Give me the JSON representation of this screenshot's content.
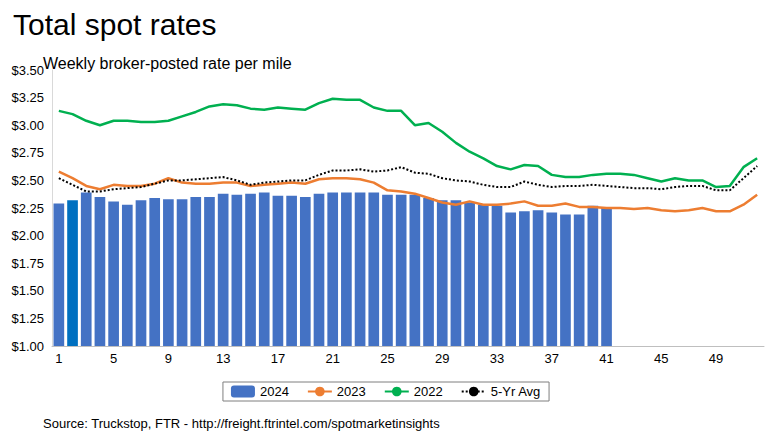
{
  "chart_data": {
    "type": "bar",
    "title": "Total spot rates",
    "subtitle": "Weekly broker-posted rate per mile",
    "annotations": [
      "Source: Truckstop, FTR - http://freight.ftrintel.com/spotmarketinsights"
    ],
    "categories": [
      1,
      null,
      null,
      null,
      5,
      null,
      null,
      null,
      9,
      null,
      null,
      null,
      13,
      null,
      null,
      null,
      17,
      null,
      null,
      null,
      21,
      null,
      null,
      null,
      25,
      null,
      null,
      null,
      29,
      null,
      null,
      null,
      33,
      null,
      null,
      null,
      37,
      null,
      null,
      null,
      41,
      null,
      null,
      null,
      45,
      null,
      null,
      null,
      49,
      null,
      null,
      null
    ],
    "ylim": [
      1.0,
      3.5
    ],
    "yticks": [
      {
        "value": 1.0,
        "label": "$1.00"
      },
      {
        "value": 1.25,
        "label": "$1.25"
      },
      {
        "value": 1.5,
        "label": "$1.50"
      },
      {
        "value": 1.75,
        "label": "$1.75"
      },
      {
        "value": 2.0,
        "label": "$2.00"
      },
      {
        "value": 2.25,
        "label": "$2.25"
      },
      {
        "value": 2.5,
        "label": "$2.50"
      },
      {
        "value": 2.75,
        "label": "$2.75"
      },
      {
        "value": 3.0,
        "label": "$3.00"
      },
      {
        "value": 3.25,
        "label": "$3.25"
      },
      {
        "value": 3.5,
        "label": "$3.50"
      }
    ],
    "grid": false,
    "legend": "bottom",
    "series": [
      {
        "name": "2024",
        "type": "bar",
        "color": "#4472c4",
        "colors": [
          "#4472c4",
          "#0070c0",
          "#4472c4",
          "#4472c4",
          "#4472c4",
          "#4472c4",
          "#4472c4",
          "#4472c4",
          "#4472c4",
          "#4472c4",
          "#4472c4",
          "#4472c4",
          "#4472c4",
          "#4472c4",
          "#4472c4",
          "#4472c4",
          "#4472c4",
          "#4472c4",
          "#4472c4",
          "#4472c4",
          "#4472c4",
          "#4472c4",
          "#4472c4",
          "#4472c4",
          "#4472c4",
          "#4472c4",
          "#4472c4",
          "#4472c4",
          "#4472c4",
          "#4472c4",
          "#4472c4",
          "#4472c4",
          "#4472c4",
          "#4472c4",
          "#4472c4",
          "#4472c4",
          "#4472c4",
          "#4472c4",
          "#4472c4",
          "#4472c4",
          "#4472c4",
          "#4472c4",
          "#4472c4",
          "#4472c4",
          "#4472c4",
          "#4472c4",
          "#4472c4",
          "#4472c4",
          "#4472c4",
          "#4472c4",
          "#4472c4",
          "#4472c4"
        ],
        "values": [
          2.29,
          2.32,
          2.39,
          2.35,
          2.31,
          2.28,
          2.32,
          2.34,
          2.33,
          2.33,
          2.35,
          2.35,
          2.38,
          2.37,
          2.38,
          2.39,
          2.36,
          2.36,
          2.35,
          2.38,
          2.39,
          2.39,
          2.39,
          2.39,
          2.37,
          2.37,
          2.37,
          2.34,
          2.32,
          2.32,
          2.3,
          2.28,
          2.27,
          2.21,
          2.22,
          2.23,
          2.21,
          2.19,
          2.19,
          2.27,
          2.26,
          null,
          null,
          null,
          null,
          null,
          null,
          null,
          null,
          null,
          null,
          null
        ]
      },
      {
        "name": "2023",
        "type": "line",
        "color": "#ed7d31",
        "line_style": "solid",
        "values": [
          2.58,
          2.52,
          2.45,
          2.42,
          2.46,
          2.45,
          2.45,
          2.47,
          2.52,
          2.48,
          2.47,
          2.47,
          2.48,
          2.48,
          2.45,
          2.46,
          2.47,
          2.48,
          2.47,
          2.51,
          2.52,
          2.52,
          2.51,
          2.48,
          2.41,
          2.4,
          2.38,
          2.34,
          2.3,
          2.28,
          2.31,
          2.28,
          2.28,
          2.29,
          2.31,
          2.27,
          2.27,
          2.29,
          2.26,
          2.26,
          2.25,
          2.25,
          2.24,
          2.25,
          2.23,
          2.22,
          2.23,
          2.25,
          2.22,
          2.22,
          2.28,
          2.37
        ]
      },
      {
        "name": "2022",
        "type": "line",
        "color": "#00b050",
        "line_style": "solid",
        "values": [
          3.13,
          3.1,
          3.04,
          3.0,
          3.04,
          3.04,
          3.03,
          3.03,
          3.04,
          3.08,
          3.12,
          3.17,
          3.19,
          3.18,
          3.15,
          3.14,
          3.16,
          3.15,
          3.14,
          3.2,
          3.24,
          3.23,
          3.23,
          3.16,
          3.13,
          3.13,
          3.0,
          3.02,
          2.94,
          2.84,
          2.76,
          2.7,
          2.63,
          2.6,
          2.64,
          2.63,
          2.55,
          2.53,
          2.53,
          2.55,
          2.56,
          2.56,
          2.55,
          2.52,
          2.49,
          2.52,
          2.5,
          2.5,
          2.44,
          2.45,
          2.62,
          2.7
        ]
      },
      {
        "name": "5-Yr Avg",
        "type": "line",
        "color": "#000000",
        "line_style": "dotted",
        "values": [
          2.52,
          2.46,
          2.4,
          2.4,
          2.42,
          2.43,
          2.44,
          2.47,
          2.5,
          2.5,
          2.51,
          2.52,
          2.53,
          2.5,
          2.46,
          2.48,
          2.49,
          2.5,
          2.5,
          2.55,
          2.59,
          2.59,
          2.6,
          2.58,
          2.59,
          2.62,
          2.57,
          2.56,
          2.52,
          2.5,
          2.49,
          2.46,
          2.44,
          2.44,
          2.49,
          2.46,
          2.44,
          2.45,
          2.45,
          2.46,
          2.45,
          2.44,
          2.43,
          2.43,
          2.42,
          2.44,
          2.45,
          2.45,
          2.41,
          2.41,
          2.52,
          2.63
        ]
      }
    ]
  }
}
